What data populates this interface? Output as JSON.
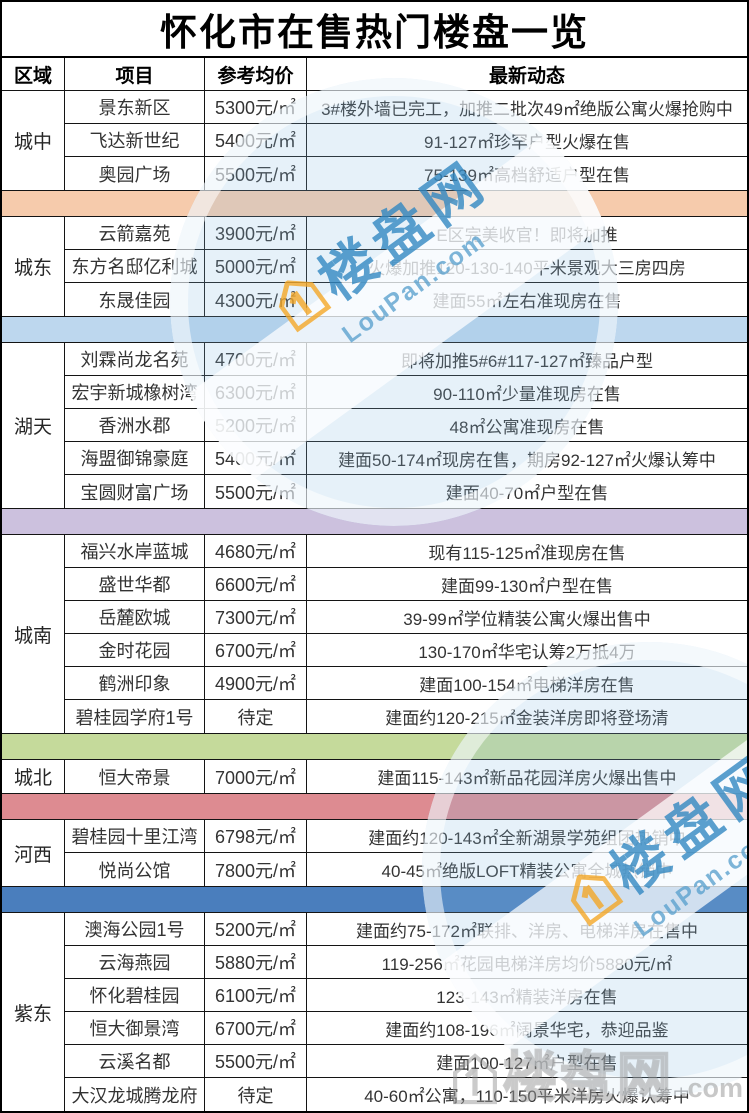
{
  "title": "怀化市在售热门楼盘一览",
  "columns": {
    "region": "区域",
    "project": "项目",
    "price": "参考均价",
    "news": "最新动态"
  },
  "sections": [
    {
      "region": "城中",
      "separator_color": "#F6CBAC",
      "rows": [
        {
          "project": "景东新区",
          "price": "5300元/㎡",
          "news": "3#楼外墙已完工，加推二批次49㎡绝版公寓火爆抢购中"
        },
        {
          "project": "飞达新世纪",
          "price": "5400元/㎡",
          "news": "91-127㎡珍罕户型火爆在售"
        },
        {
          "project": "奥园广场",
          "price": "5500元/㎡",
          "news": "75-139㎡高档舒适户型在售"
        }
      ]
    },
    {
      "region": "城东",
      "separator_color": "#BDD7EE",
      "rows": [
        {
          "project": "云箭嘉苑",
          "price": "3900元/㎡",
          "news": "E区完美收官！即将加推"
        },
        {
          "project": "东方名邸亿利城",
          "price": "5000元/㎡",
          "news": "火爆加推120-130-140平米景观大三房四房"
        },
        {
          "project": "东晟佳园",
          "price": "4300元/㎡",
          "news": "建面55㎡左右准现房在售"
        }
      ]
    },
    {
      "region": "湖天",
      "separator_color": "#CCC1DE",
      "rows": [
        {
          "project": "刘霖尚龙名苑",
          "price": "4700元/㎡",
          "news": "即将加推5#6#117-127㎡臻品户型"
        },
        {
          "project": "宏宇新城橡树湾",
          "price": "6300元/㎡",
          "news": "90-110㎡少量准现房在售"
        },
        {
          "project": "香洲水郡",
          "price": "5200元/㎡",
          "news": "48㎡公寓准现房在售"
        },
        {
          "project": "海盟御锦豪庭",
          "price": "5400元/㎡",
          "news": "建面50-174㎡现房在售，期房92-127㎡火爆认筹中"
        },
        {
          "project": "宝圆财富广场",
          "price": "5500元/㎡",
          "news": "建面40-70㎡户型在售"
        }
      ]
    },
    {
      "region": "城南",
      "separator_color": "#C5DA9B",
      "rows": [
        {
          "project": "福兴水岸蓝城",
          "price": "4680元/㎡",
          "news": "现有115-125㎡准现房在售"
        },
        {
          "project": "盛世华都",
          "price": "6600元/㎡",
          "news": "建面99-130㎡户型在售"
        },
        {
          "project": "岳麓欧城",
          "price": "7300元/㎡",
          "news": "39-99㎡学位精装公寓火爆出售中"
        },
        {
          "project": "金时花园",
          "price": "6700元/㎡",
          "news": "130-170㎡华宅认筹2万抵4万"
        },
        {
          "project": "鹤洲印象",
          "price": "4900元/㎡",
          "news": "建面100-154㎡电梯洋房在售"
        },
        {
          "project": "碧桂园学府1号",
          "price": "待定",
          "news": "建面约120-215㎡金装洋房即将登场清"
        }
      ]
    },
    {
      "region": "城北",
      "separator_color": "#DD8B91",
      "rows": [
        {
          "project": "恒大帝景",
          "price": "7000元/㎡",
          "news": "建面115-143㎡新品花园洋房火爆出售中"
        }
      ]
    },
    {
      "region": "河西",
      "separator_color": "#4A7EBD",
      "rows": [
        {
          "project": "碧桂园十里江湾",
          "price": "6798元/㎡",
          "news": "建面约120-143㎡全新湖景学苑组团热销中"
        },
        {
          "project": "悦尚公馆",
          "price": "7800元/㎡",
          "news": "40-45㎡绝版LOFT精装公寓全城热销中"
        }
      ]
    },
    {
      "region": "紫东",
      "separator_color": null,
      "rows": [
        {
          "project": "澳海公园1号",
          "price": "5200元/㎡",
          "news": "建面约75-172㎡联排、洋房、电梯洋房在售中"
        },
        {
          "project": "云海燕园",
          "price": "5880元/㎡",
          "news": "119-256㎡花园电梯洋房均价5880元/㎡"
        },
        {
          "project": "怀化碧桂园",
          "price": "6100元/㎡",
          "news": "123-143㎡精装洋房在售"
        },
        {
          "project": "恒大御景湾",
          "price": "6700元/㎡",
          "news": "建面约108-196㎡阔景华宅，恭迎品鉴"
        },
        {
          "project": "云溪名都",
          "price": "5500元/㎡",
          "news": "建面100-127㎡户型在售"
        },
        {
          "project": "大汉龙城腾龙府",
          "price": "待定",
          "news": "40-60㎡公寓，110-150平米洋房火爆认筹中"
        }
      ]
    }
  ],
  "watermark": {
    "brand": "楼盘网",
    "domain": "LouPan.com",
    "corner_brand": "楼盘网",
    "corner_domain": ".com",
    "brand_blue": "#2E86C1",
    "circle_blue": "#8DC1E3",
    "icon_orange": "#F5A623",
    "corner_gray": "#969696"
  }
}
